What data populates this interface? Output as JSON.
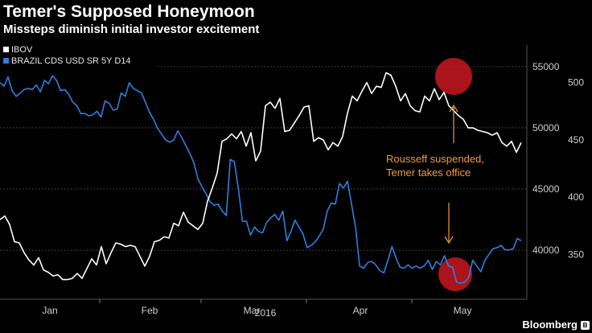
{
  "header": {
    "title": "Temer's Supposed Honeymoon",
    "subtitle": "Missteps diminish initial investor excitement"
  },
  "brand": {
    "label": "Bloomberg",
    "mark": "B"
  },
  "colors": {
    "background": "#000000",
    "ibov": "#ffffff",
    "cds": "#2f7fe0",
    "annotation": "#f39a38",
    "highlight": "#c8181e",
    "grid": "#3c3c3c",
    "axis_text": "#cfcfcf"
  },
  "chart_data": {
    "type": "line",
    "xlabel": "2016",
    "x_ticks": [
      "Jan",
      "Feb",
      "Mar",
      "Apr",
      "May"
    ],
    "legend": [
      {
        "name": "IBOV",
        "color": "#ffffff"
      },
      {
        "name": "BRAZIL CDS USD SR 5Y D14",
        "color": "#2f7fe0"
      }
    ],
    "legend_position": "top-left",
    "y_left": {
      "series": "IBOV",
      "range": [
        36000,
        56500
      ],
      "ticks": [
        40000,
        45000,
        50000,
        55000
      ]
    },
    "y_right": {
      "series": "BRAZIL CDS USD SR 5Y D14",
      "range": [
        311,
        530
      ],
      "ticks": [
        350,
        400,
        450,
        500
      ]
    },
    "series": [
      {
        "name": "IBOV",
        "axis": "left",
        "values": [
          42500,
          42800,
          42100,
          40700,
          40600,
          39800,
          39200,
          38800,
          39400,
          38400,
          38200,
          37900,
          38000,
          37600,
          37600,
          37700,
          38100,
          37700,
          38500,
          39300,
          38800,
          40300,
          38900,
          39800,
          40600,
          40500,
          40300,
          40400,
          40300,
          39500,
          38700,
          39500,
          40700,
          40800,
          41100,
          41000,
          42200,
          42000,
          43100,
          42300,
          42000,
          41700,
          42200,
          44000,
          45100,
          46300,
          48900,
          49100,
          49500,
          49100,
          49700,
          48500,
          49600,
          47300,
          48100,
          51800,
          52100,
          51600,
          52400,
          49700,
          49800,
          50400,
          51000,
          51700,
          51800,
          48900,
          49200,
          49000,
          48200,
          48800,
          48500,
          49300,
          51200,
          52600,
          52200,
          53000,
          53700,
          52800,
          53400,
          53300,
          54500,
          54300,
          53400,
          52200,
          52800,
          51800,
          51400,
          51300,
          52600,
          52200,
          53200,
          52300,
          52900,
          51800,
          51400,
          51000,
          50700,
          50000,
          50000,
          49800,
          49700,
          49600,
          49400,
          49600,
          48800,
          48500,
          48900,
          48000,
          48800
        ]
      },
      {
        "name": "BRAZIL CDS USD SR 5Y D14",
        "axis": "right",
        "values": [
          500,
          497,
          505,
          493,
          488,
          491,
          494,
          495,
          494,
          498,
          492,
          502,
          499,
          506,
          502,
          493,
          494,
          490,
          483,
          480,
          473,
          473,
          471,
          472,
          475,
          470,
          484,
          482,
          476,
          477,
          491,
          488,
          500,
          495,
          493,
          491,
          483,
          474,
          468,
          460,
          455,
          450,
          448,
          450,
          458,
          452,
          445,
          438,
          430,
          416,
          409,
          403,
          396,
          393,
          394,
          388,
          384,
          433,
          431,
          407,
          379,
          379,
          367,
          374,
          370,
          369,
          378,
          382,
          385,
          380,
          388,
          362,
          370,
          380,
          374,
          368,
          356,
          358,
          361,
          366,
          372,
          388,
          395,
          394,
          412,
          408,
          414,
          394,
          374,
          340,
          338,
          343,
          344,
          341,
          336,
          334,
          345,
          357,
          347,
          339,
          338,
          341,
          338,
          340,
          338,
          340,
          345,
          337,
          344,
          341,
          349,
          340,
          339,
          326,
          325,
          326,
          330,
          345,
          340,
          335,
          345,
          350,
          355,
          356,
          358,
          354,
          354,
          355,
          364,
          362
        ]
      }
    ],
    "annotations": [
      {
        "text": "Rousseff suspended,"
      },
      {
        "text": "Temer takes office"
      }
    ]
  }
}
